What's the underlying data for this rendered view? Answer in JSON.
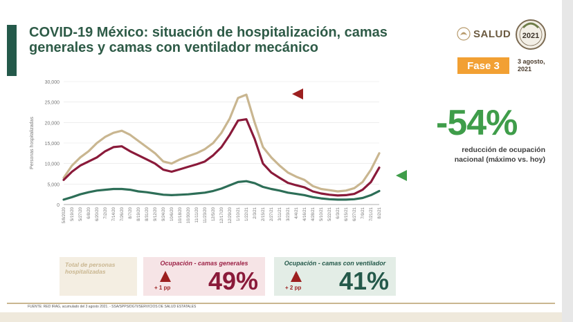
{
  "title_line1": "COVID-19 México: situación de hospitalización, camas",
  "title_line2": "generales y camas con ventilador mecánico",
  "salud": "SALUD",
  "seal_text": "2021",
  "fase": "Fase 3",
  "fecha_line1": "3 agosto,",
  "fecha_line2": "2021",
  "big_pct": "-54%",
  "big_desc_line1": "reducción de ocupación",
  "big_desc_line2": "nacional (máximo vs. hoy)",
  "card_total_line1": "Total de personas",
  "card_total_line2": "hospitalizadas",
  "card_gen_head": "Ocupación - camas generales",
  "card_gen_pp": "+ 1 pp",
  "card_gen_pct": "49%",
  "card_vent_head": "Ocupación - camas con ventilador",
  "card_vent_pp": "+ 2 pp",
  "card_vent_pct": "41%",
  "footer": "FUENTE: RED IRAG, acumulado del 3 agosto 2021. - SSA/SPPS/DGTI/SERVICIOS DE SALUD ESTATALES",
  "colors": {
    "total": "#c9b690",
    "general": "#8a1a3a",
    "ventilador": "#2d6e57",
    "accent": "#3f9d4a"
  },
  "chart_data": {
    "type": "line",
    "title": "",
    "ylabel": "Personas hospitalizadas",
    "xlabel": "",
    "ylim": [
      0,
      30000
    ],
    "yticks": [
      "0",
      "5,000",
      "10,000",
      "15,000",
      "20,000",
      "25,000",
      "30,000"
    ],
    "x_tick_labels": [
      "5/8/2020",
      "5/19/20",
      "5/27/20",
      "6/8/20",
      "6/20/20",
      "7/2/20",
      "7/14/20",
      "7/26/20",
      "8/7/20",
      "8/19/20",
      "8/31/20",
      "9/12/20",
      "9/24/20",
      "10/6/20",
      "10/18/20",
      "10/30/20",
      "11/11/20",
      "11/23/20",
      "12/5/20",
      "12/17/20",
      "12/29/20",
      "1/10/21",
      "1/22/21",
      "2/3/21",
      "2/15/21",
      "2/27/21",
      "3/11/21",
      "3/23/21",
      "4/4/21",
      "4/16/21",
      "4/28/21",
      "5/10/21",
      "5/22/21",
      "6/3/21",
      "6/15/21",
      "6/27/21",
      "7/9/21",
      "7/21/21",
      "8/2/21"
    ],
    "series": [
      {
        "name": "Total de personas hospitalizadas",
        "values": [
          6500,
          9500,
          11500,
          13000,
          15000,
          16500,
          17500,
          18000,
          17000,
          15500,
          14000,
          12500,
          10500,
          10000,
          11000,
          11800,
          12500,
          13500,
          15000,
          17500,
          21000,
          26000,
          26800,
          20000,
          14000,
          11500,
          9500,
          7800,
          6800,
          6000,
          4500,
          3800,
          3500,
          3200,
          3400,
          4000,
          5500,
          8500,
          12500
        ]
      },
      {
        "name": "Ocupación - camas generales",
        "values": [
          6000,
          8000,
          9500,
          10500,
          11500,
          13000,
          14000,
          14200,
          13000,
          12000,
          11000,
          10000,
          8500,
          8000,
          8600,
          9200,
          9800,
          10500,
          12000,
          14000,
          17000,
          20500,
          20800,
          16000,
          10000,
          7800,
          6500,
          5300,
          4700,
          4200,
          3200,
          2700,
          2400,
          2200,
          2300,
          2600,
          3600,
          5500,
          9000
        ]
      },
      {
        "name": "Ocupación - camas con ventilador",
        "values": [
          1200,
          1800,
          2500,
          3000,
          3400,
          3600,
          3800,
          3800,
          3600,
          3200,
          3000,
          2700,
          2400,
          2300,
          2400,
          2500,
          2700,
          2900,
          3300,
          3900,
          4700,
          5500,
          5700,
          5200,
          4300,
          3800,
          3400,
          2900,
          2600,
          2300,
          1800,
          1500,
          1300,
          1200,
          1200,
          1300,
          1600,
          2300,
          3300
        ]
      }
    ]
  }
}
